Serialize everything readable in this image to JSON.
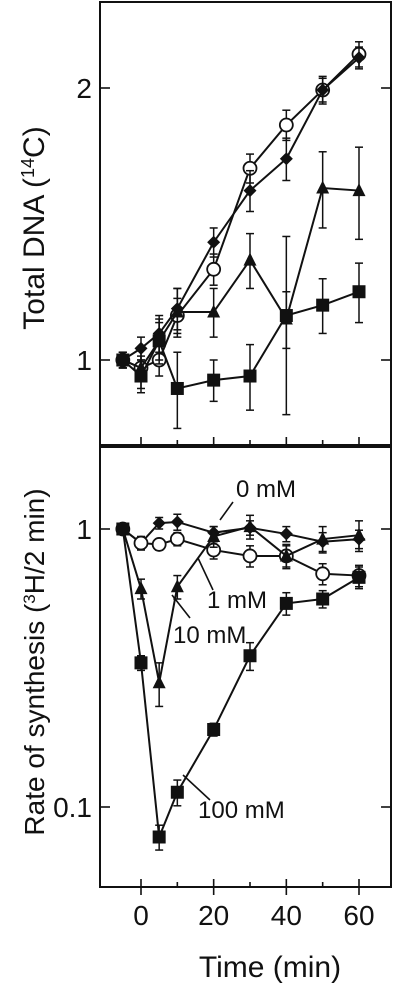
{
  "chart_data": [
    {
      "type": "line",
      "ylabel_main": "Total DNA (",
      "ylabel_sup": "14",
      "ylabel_end": "C)",
      "y_scale": "log",
      "ylim": [
        0.8,
        2.4
      ],
      "xlim": [
        -10,
        64
      ],
      "yticks": [
        1,
        2
      ],
      "ytick_labels": [
        "1",
        "2"
      ],
      "series": [
        {
          "marker": "circle-open",
          "x": [
            -5,
            0,
            5,
            10,
            20,
            30,
            40,
            50,
            60
          ],
          "y": [
            1.0,
            0.98,
            1.0,
            1.12,
            1.26,
            1.63,
            1.82,
            1.99,
            2.18
          ],
          "err": [
            0.02,
            0.03,
            0.04,
            0.05,
            0.05,
            0.06,
            0.07,
            0.06,
            0.07
          ]
        },
        {
          "marker": "diamond",
          "x": [
            -5,
            0,
            5,
            10,
            20,
            30,
            40,
            50,
            60
          ],
          "y": [
            1.0,
            1.03,
            1.07,
            1.14,
            1.35,
            1.54,
            1.67,
            1.99,
            2.16
          ],
          "err": [
            0.02,
            0.03,
            0.05,
            0.06,
            0.05,
            0.08,
            0.09,
            0.07,
            0.06
          ]
        },
        {
          "marker": "triangle",
          "x": [
            -5,
            0,
            5,
            10,
            20,
            30,
            40,
            50,
            60
          ],
          "y": [
            1.0,
            0.98,
            1.05,
            1.13,
            1.13,
            1.29,
            1.11,
            1.55,
            1.54
          ],
          "err": [
            0.02,
            0.05,
            0.06,
            0.07,
            0.07,
            0.09,
            0.08,
            0.15,
            0.18
          ]
        },
        {
          "marker": "square",
          "x": [
            -5,
            0,
            5,
            10,
            20,
            30,
            40,
            50,
            60
          ],
          "y": [
            1.0,
            0.96,
            1.05,
            0.93,
            0.95,
            0.96,
            1.12,
            1.15,
            1.19
          ],
          "err": [
            0.02,
            0.04,
            0.05,
            0.09,
            0.05,
            0.08,
            0.25,
            0.08,
            0.09
          ]
        }
      ]
    },
    {
      "type": "line",
      "ylabel_main": "Rate of synthesis (",
      "ylabel_sup": "3",
      "ylabel_end": "H/2 min)",
      "xlabel": "Time (min)",
      "y_scale": "log",
      "ylim": [
        0.05,
        1.6
      ],
      "xlim": [
        -10,
        64
      ],
      "yticks": [
        0.1,
        1
      ],
      "ytick_labels": [
        "0.1",
        "1"
      ],
      "xticks": [
        0,
        20,
        40,
        60
      ],
      "xtick_labels": [
        "0",
        "20",
        "40",
        "60"
      ],
      "annotations": [
        "0 mM",
        "1 mM",
        "10 mM",
        "100 mM"
      ],
      "series": [
        {
          "name": "0 mM",
          "marker": "diamond",
          "x": [
            -5,
            0,
            5,
            10,
            20,
            30,
            40,
            50,
            60
          ],
          "y": [
            1.0,
            0.89,
            1.05,
            1.06,
            0.97,
            1.01,
            0.96,
            0.9,
            0.92
          ],
          "err": [
            0.02,
            0.05,
            0.05,
            0.07,
            0.05,
            0.06,
            0.06,
            0.07,
            0.07
          ]
        },
        {
          "name": "1 mM",
          "marker": "circle-open",
          "x": [
            -5,
            0,
            5,
            10,
            20,
            30,
            40,
            50,
            60
          ],
          "y": [
            1.0,
            0.89,
            0.88,
            0.92,
            0.84,
            0.8,
            0.8,
            0.69,
            0.68
          ],
          "err": [
            0.02,
            0.04,
            0.04,
            0.05,
            0.06,
            0.07,
            0.07,
            0.06,
            0.06
          ]
        },
        {
          "name": "10 mM",
          "marker": "triangle",
          "x": [
            -5,
            0,
            5,
            10,
            20,
            30,
            40,
            50,
            60
          ],
          "y": [
            1.0,
            0.61,
            0.28,
            0.62,
            0.94,
            1.02,
            0.8,
            0.92,
            0.95
          ],
          "err": [
            0.02,
            0.05,
            0.05,
            0.06,
            0.08,
            0.1,
            0.08,
            0.1,
            0.12
          ]
        },
        {
          "name": "100 mM",
          "marker": "square",
          "x": [
            -5,
            0,
            5,
            10,
            20,
            30,
            40,
            50,
            60
          ],
          "y": [
            1.0,
            0.33,
            0.078,
            0.113,
            0.19,
            0.35,
            0.54,
            0.56,
            0.67
          ],
          "err": [
            0.02,
            0.02,
            0.008,
            0.012,
            0.01,
            0.04,
            0.05,
            0.04,
            0.06
          ]
        }
      ]
    }
  ]
}
